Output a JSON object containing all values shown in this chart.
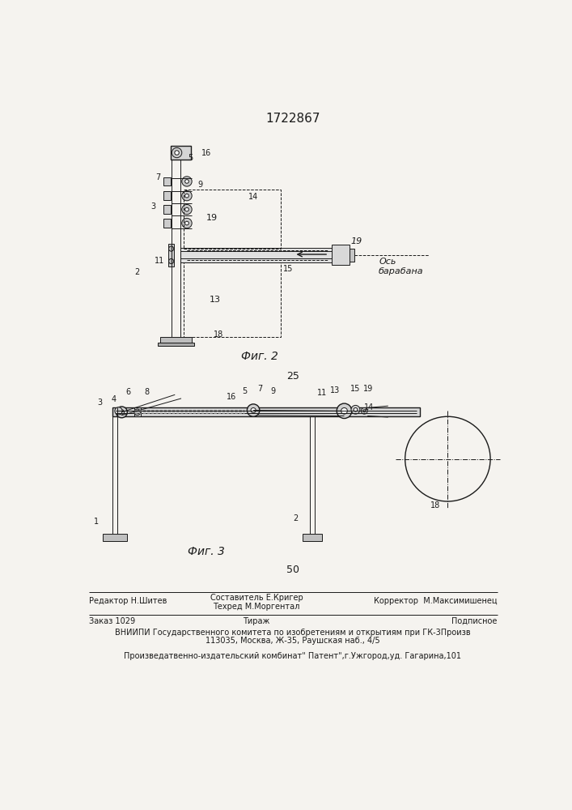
{
  "title": "1722867",
  "title_fontsize": 11,
  "bg_color": "#f5f3ef",
  "line_color": "#1a1a1a",
  "fig2_caption": "Фиг. 2",
  "fig3_caption": "Фиг. 3",
  "page_number_top": "25",
  "page_number_bottom": "50",
  "footer_line1_left": "Редактор Н.Шитев",
  "footer_line1_center1": "Составитель Е.Кригер",
  "footer_line1_center2": "Техред М.Моргентал",
  "footer_line1_right": "Корректор  М.Максимишенец",
  "footer_line2_left": "Заказ 1029",
  "footer_line2_center": "Тираж",
  "footer_line2_right": "Подписное",
  "footer_line3": "ВНИИПИ Государственного комитета по изобретениям и открытиям при ГК-3Произв",
  "footer_line4": "113035, Москва, Ж-35, Раушская наб., 4/5",
  "footer_line5": "Произведатвенно-издательский комбинат\" Патент\",г.Ужгород,уд. Гагарина,101"
}
